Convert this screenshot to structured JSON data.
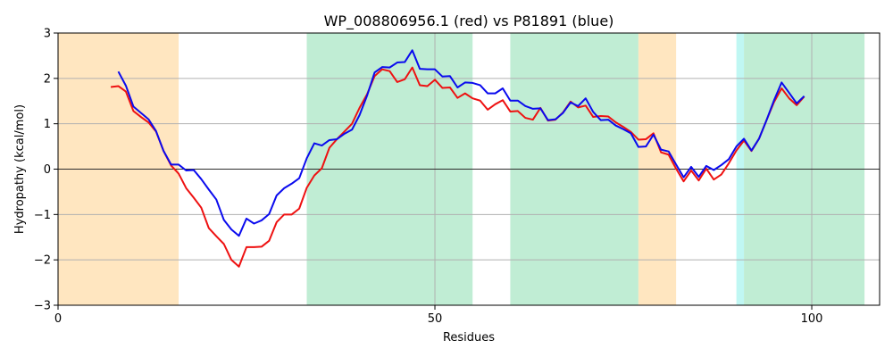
{
  "chart_data": {
    "type": "line",
    "title": "WP_008806956.1 (red) vs P81891 (blue)",
    "xlabel": "Residues",
    "ylabel": "Hydropathy (kcal/mol)",
    "xlim": [
      0,
      109
    ],
    "ylim": [
      -3,
      3
    ],
    "xticks": [
      0,
      50,
      100
    ],
    "yticks": [
      -3,
      -2,
      -1,
      0,
      1,
      2,
      3
    ],
    "grid": true,
    "zero_line": true,
    "regions": [
      {
        "start": 0,
        "end": 16,
        "color": "#ffe6c0"
      },
      {
        "start": 33,
        "end": 55,
        "color": "#c0edd4"
      },
      {
        "start": 60,
        "end": 77,
        "color": "#c0edd4"
      },
      {
        "start": 77,
        "end": 82,
        "color": "#ffe6c0"
      },
      {
        "start": 90,
        "end": 91,
        "color": "#c0f7f3"
      },
      {
        "start": 91,
        "end": 107,
        "color": "#c0edd4"
      }
    ],
    "series": [
      {
        "color": "#ee1111",
        "x": [
          7,
          8,
          9,
          10,
          11,
          12,
          13,
          14,
          15,
          16,
          17,
          18,
          19,
          20,
          21,
          22,
          23,
          24,
          25,
          26,
          27,
          28,
          29,
          30,
          31,
          32,
          33,
          34,
          35,
          36,
          37,
          38,
          39,
          40,
          41,
          42,
          43,
          44,
          45,
          46,
          47,
          48,
          49,
          50,
          51,
          52,
          53,
          54,
          55,
          56,
          57,
          58,
          59,
          60,
          61,
          62,
          63,
          64,
          65,
          66,
          67,
          68,
          69,
          70,
          71,
          72,
          73,
          74,
          75,
          76,
          77,
          78,
          79,
          80,
          81,
          82,
          83,
          84,
          85,
          86,
          87,
          88,
          89,
          90,
          91,
          92,
          93,
          94,
          95,
          96,
          97,
          98,
          99
        ],
        "values": [
          1.81,
          1.83,
          1.71,
          1.28,
          1.15,
          1.03,
          0.83,
          0.4,
          0.08,
          -0.1,
          -0.42,
          -0.63,
          -0.85,
          -1.3,
          -1.48,
          -1.65,
          -2.0,
          -2.15,
          -1.72,
          -1.72,
          -1.71,
          -1.58,
          -1.17,
          -1.0,
          -1.0,
          -0.87,
          -0.41,
          -0.14,
          0.02,
          0.47,
          0.66,
          0.83,
          1.0,
          1.35,
          1.65,
          2.05,
          2.2,
          2.16,
          1.92,
          1.98,
          2.24,
          1.85,
          1.83,
          1.97,
          1.79,
          1.8,
          1.57,
          1.67,
          1.56,
          1.51,
          1.31,
          1.43,
          1.52,
          1.27,
          1.28,
          1.13,
          1.09,
          1.35,
          1.07,
          1.09,
          1.25,
          1.49,
          1.36,
          1.4,
          1.15,
          1.17,
          1.16,
          1.03,
          0.93,
          0.82,
          0.65,
          0.66,
          0.79,
          0.37,
          0.32,
          0.01,
          -0.27,
          -0.03,
          -0.25,
          0.01,
          -0.23,
          -0.12,
          0.13,
          0.41,
          0.63,
          0.4,
          0.67,
          1.08,
          1.48,
          1.78,
          1.56,
          1.41,
          1.6
        ]
      },
      {
        "color": "#0a0aee",
        "x": [
          8,
          9,
          10,
          11,
          12,
          13,
          14,
          15,
          16,
          17,
          18,
          19,
          20,
          21,
          22,
          23,
          24,
          25,
          26,
          27,
          28,
          29,
          30,
          31,
          32,
          33,
          34,
          35,
          36,
          37,
          38,
          39,
          40,
          41,
          42,
          43,
          44,
          45,
          46,
          47,
          48,
          49,
          50,
          51,
          52,
          53,
          54,
          55,
          56,
          57,
          58,
          59,
          60,
          61,
          62,
          63,
          64,
          65,
          66,
          67,
          68,
          69,
          70,
          71,
          72,
          73,
          74,
          75,
          76,
          77,
          78,
          79,
          80,
          81,
          82,
          83,
          84,
          85,
          86,
          87,
          88,
          89,
          90,
          91,
          92,
          93,
          94,
          95,
          96,
          97,
          98,
          99
        ],
        "values": [
          2.15,
          1.84,
          1.38,
          1.24,
          1.1,
          0.84,
          0.4,
          0.1,
          0.1,
          -0.03,
          -0.02,
          -0.22,
          -0.45,
          -0.67,
          -1.12,
          -1.33,
          -1.47,
          -1.09,
          -1.2,
          -1.13,
          -0.99,
          -0.58,
          -0.42,
          -0.32,
          -0.2,
          0.24,
          0.57,
          0.52,
          0.64,
          0.66,
          0.78,
          0.87,
          1.19,
          1.62,
          2.13,
          2.25,
          2.24,
          2.35,
          2.36,
          2.62,
          2.21,
          2.2,
          2.2,
          2.04,
          2.05,
          1.8,
          1.91,
          1.9,
          1.85,
          1.67,
          1.67,
          1.78,
          1.51,
          1.51,
          1.39,
          1.33,
          1.34,
          1.08,
          1.1,
          1.24,
          1.47,
          1.39,
          1.56,
          1.26,
          1.08,
          1.09,
          0.96,
          0.88,
          0.79,
          0.49,
          0.5,
          0.76,
          0.43,
          0.39,
          0.1,
          -0.18,
          0.05,
          -0.17,
          0.07,
          -0.02,
          0.09,
          0.22,
          0.5,
          0.67,
          0.41,
          0.67,
          1.08,
          1.52,
          1.91,
          1.68,
          1.45,
          1.61
        ]
      }
    ]
  }
}
